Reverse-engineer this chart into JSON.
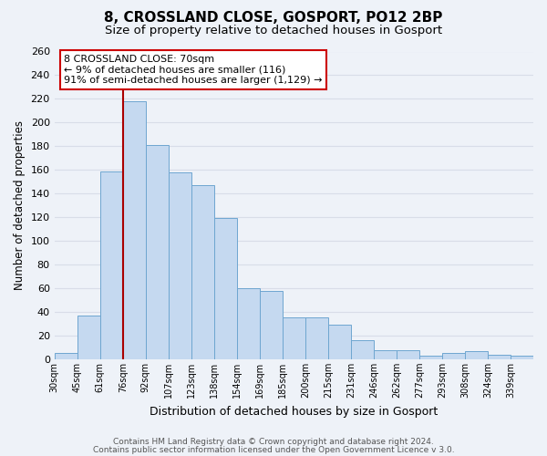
{
  "title": "8, CROSSLAND CLOSE, GOSPORT, PO12 2BP",
  "subtitle": "Size of property relative to detached houses in Gosport",
  "xlabel": "Distribution of detached houses by size in Gosport",
  "ylabel": "Number of detached properties",
  "bin_labels": [
    "30sqm",
    "45sqm",
    "61sqm",
    "76sqm",
    "92sqm",
    "107sqm",
    "123sqm",
    "138sqm",
    "154sqm",
    "169sqm",
    "185sqm",
    "200sqm",
    "215sqm",
    "231sqm",
    "246sqm",
    "262sqm",
    "277sqm",
    "293sqm",
    "308sqm",
    "324sqm",
    "339sqm"
  ],
  "bar_heights": [
    5,
    37,
    159,
    218,
    181,
    158,
    147,
    119,
    60,
    58,
    35,
    35,
    29,
    16,
    8,
    8,
    3,
    5,
    7,
    4,
    3
  ],
  "bar_color": "#c5d9f0",
  "bar_edge_color": "#6ea6d0",
  "vline_bin": 3,
  "vline_color": "#aa0000",
  "annotation_line1": "8 CROSSLAND CLOSE: 70sqm",
  "annotation_line2": "← 9% of detached houses are smaller (116)",
  "annotation_line3": "91% of semi-detached houses are larger (1,129) →",
  "annotation_box_color": "#cc0000",
  "ylim": [
    0,
    260
  ],
  "yticks": [
    0,
    20,
    40,
    60,
    80,
    100,
    120,
    140,
    160,
    180,
    200,
    220,
    240,
    260
  ],
  "footer1": "Contains HM Land Registry data © Crown copyright and database right 2024.",
  "footer2": "Contains public sector information licensed under the Open Government Licence v 3.0.",
  "bg_color": "#eef2f8",
  "grid_color": "#d8dde8",
  "title_fontsize": 11,
  "subtitle_fontsize": 9.5
}
